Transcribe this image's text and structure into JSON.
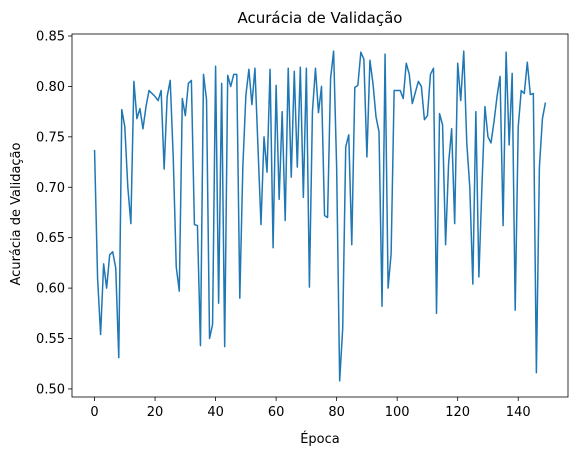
{
  "chart_data": {
    "type": "line",
    "title": "Acurácia de Validação",
    "xlabel": "Época",
    "ylabel": "Acurácia de Validação",
    "xlim": [
      -7.45,
      156.45
    ],
    "ylim": [
      0.492,
      0.852
    ],
    "xticks": [
      0,
      20,
      40,
      60,
      80,
      100,
      120,
      140
    ],
    "xtick_labels": [
      "0",
      "20",
      "40",
      "60",
      "80",
      "100",
      "120",
      "140"
    ],
    "yticks": [
      0.5,
      0.55,
      0.6,
      0.65,
      0.7,
      0.75,
      0.8,
      0.85
    ],
    "ytick_labels": [
      "0.50",
      "0.55",
      "0.60",
      "0.65",
      "0.70",
      "0.75",
      "0.80",
      "0.85"
    ],
    "grid": false,
    "color": "#1f77b4",
    "series": [
      {
        "x_start": 0,
        "values": [
          0.737,
          0.61,
          0.554,
          0.624,
          0.6,
          0.633,
          0.636,
          0.62,
          0.531,
          0.777,
          0.76,
          0.7,
          0.664,
          0.805,
          0.768,
          0.778,
          0.758,
          0.78,
          0.796,
          0.793,
          0.79,
          0.786,
          0.796,
          0.718,
          0.79,
          0.806,
          0.73,
          0.621,
          0.597,
          0.788,
          0.771,
          0.803,
          0.806,
          0.663,
          0.662,
          0.543,
          0.812,
          0.787,
          0.55,
          0.564,
          0.82,
          0.585,
          0.803,
          0.542,
          0.811,
          0.8,
          0.812,
          0.812,
          0.59,
          0.72,
          0.791,
          0.817,
          0.782,
          0.818,
          0.74,
          0.663,
          0.75,
          0.715,
          0.817,
          0.64,
          0.801,
          0.688,
          0.775,
          0.667,
          0.818,
          0.71,
          0.815,
          0.72,
          0.819,
          0.69,
          0.818,
          0.601,
          0.775,
          0.818,
          0.774,
          0.8,
          0.672,
          0.67,
          0.808,
          0.835,
          0.72,
          0.508,
          0.56,
          0.74,
          0.752,
          0.643,
          0.799,
          0.801,
          0.834,
          0.827,
          0.73,
          0.826,
          0.803,
          0.77,
          0.755,
          0.582,
          0.832,
          0.6,
          0.634,
          0.796,
          0.796,
          0.796,
          0.788,
          0.823,
          0.812,
          0.783,
          0.794,
          0.805,
          0.8,
          0.767,
          0.771,
          0.812,
          0.818,
          0.575,
          0.773,
          0.762,
          0.643,
          0.724,
          0.758,
          0.664,
          0.823,
          0.786,
          0.835,
          0.744,
          0.7,
          0.604,
          0.775,
          0.611,
          0.7,
          0.78,
          0.75,
          0.744,
          0.765,
          0.79,
          0.81,
          0.662,
          0.834,
          0.742,
          0.813,
          0.578,
          0.76,
          0.796,
          0.793,
          0.824,
          0.792,
          0.793,
          0.516,
          0.72,
          0.768,
          0.784
        ]
      }
    ]
  }
}
